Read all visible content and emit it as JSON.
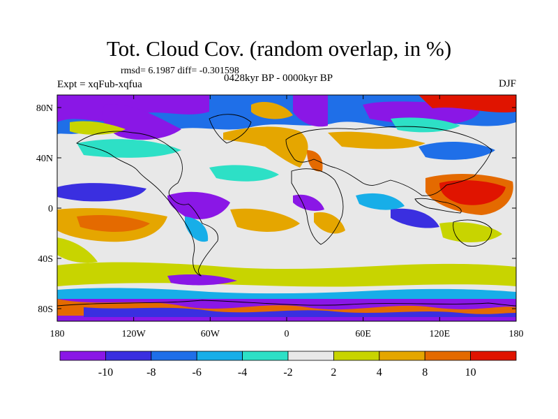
{
  "title": "Tot. Cloud Cov. (random overlap, in %)",
  "stats": "rmsd= 6.1987 diff= -0.301598",
  "experiment": "Expt = xqFub-xqfua",
  "period": "0428kyr BP - 0000kyr BP",
  "season": "DJF",
  "lat_ticks": [
    "80N",
    "40N",
    "0",
    "40S",
    "80S"
  ],
  "lon_ticks": [
    "180",
    "120W",
    "60W",
    "0",
    "60E",
    "120E",
    "180"
  ],
  "colorbar": {
    "labels": [
      "-10",
      "-8",
      "-6",
      "-4",
      "-2",
      "2",
      "4",
      "8",
      "10"
    ],
    "colors": [
      "#8a17e6",
      "#3a2fe0",
      "#1f6fe8",
      "#17aee8",
      "#2de0c6",
      "#e8e8e8",
      "#c8d400",
      "#e5a600",
      "#e46a00",
      "#e01400"
    ]
  }
}
